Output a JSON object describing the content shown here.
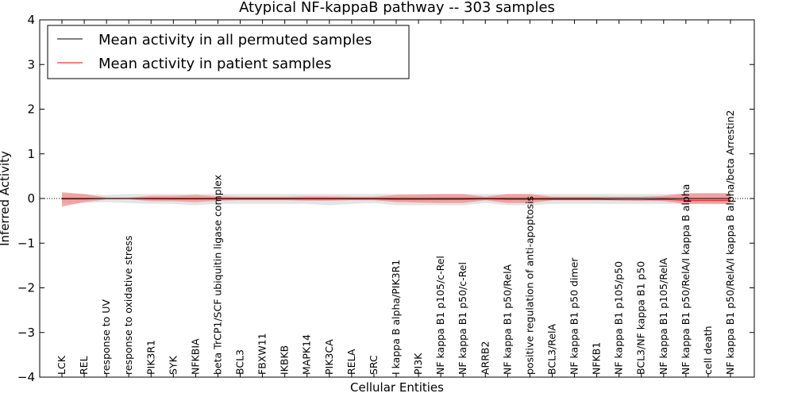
{
  "chart_data": {
    "type": "line",
    "title": "Atypical NF-kappaB pathway -- 303 samples",
    "xlabel": "Cellular Entities",
    "ylabel": "Inferred Activity",
    "ylim": [
      -4,
      4
    ],
    "yticks": [
      4,
      3,
      2,
      1,
      0,
      -1,
      -2,
      -3,
      -4
    ],
    "ytick_labels": [
      "4",
      "3",
      "2",
      "1",
      "0",
      "−1",
      "−2",
      "−3",
      "−4"
    ],
    "grid": false,
    "legend_position": "top-left",
    "categories": [
      "LCK",
      "REL",
      "response to UV",
      "response to oxidative stress",
      "PIK3R1",
      "SYK",
      "NFKBIA",
      "beta TrCP1/SCF ubiquitin ligase complex",
      "BCL3",
      "FBXW11",
      "IKBKB",
      "MAPK14",
      "PIK3CA",
      "RELA",
      "SRC",
      "I kappa B alpha/PIK3R1",
      "PI3K",
      "NF kappa B1 p105/c-Rel",
      "NF kappa B1 p50/c-Rel",
      "ARRB2",
      "NF kappa B1 p50/RelA",
      "positive regulation of anti-apoptosis",
      "BCL3/RelA",
      "NF kappa B1 p50 dimer",
      "NFKB1",
      "NF kappa B1 p105/p50",
      "BCL3/NF kappa B1 p50",
      "NF kappa B1 p105/RelA",
      "NF kappa B1 p50/RelA/I kappa B alpha",
      "cell death",
      "NF kappa B1 p50/RelA/I kappa B alpha/beta Arrestin2"
    ],
    "series": [
      {
        "name": "Mean activity in all permuted samples",
        "color": "#000000",
        "values": [
          0.0,
          0.0,
          0.0,
          0.0,
          0.0,
          0.0,
          0.0,
          0.0,
          0.0,
          0.0,
          0.0,
          0.0,
          0.0,
          0.0,
          0.0,
          0.0,
          0.0,
          0.0,
          0.0,
          0.0,
          0.0,
          0.0,
          0.0,
          0.0,
          0.0,
          0.0,
          0.0,
          0.0,
          0.0,
          0.0,
          0.0
        ],
        "band_upper": [
          0.1,
          0.1,
          0.08,
          0.1,
          0.1,
          0.1,
          0.1,
          0.1,
          0.1,
          0.1,
          0.1,
          0.1,
          0.1,
          0.1,
          0.1,
          0.1,
          0.1,
          0.1,
          0.1,
          0.1,
          0.1,
          0.1,
          0.1,
          0.1,
          0.1,
          0.1,
          0.1,
          0.1,
          0.1,
          0.1,
          0.1
        ],
        "band_lower": [
          -0.1,
          -0.1,
          -0.08,
          -0.1,
          -0.12,
          -0.12,
          -0.15,
          -0.12,
          -0.12,
          -0.12,
          -0.12,
          -0.12,
          -0.15,
          -0.12,
          -0.1,
          -0.15,
          -0.15,
          -0.15,
          -0.15,
          -0.1,
          -0.15,
          -0.15,
          -0.12,
          -0.12,
          -0.12,
          -0.12,
          -0.12,
          -0.12,
          -0.12,
          -0.12,
          -0.12
        ],
        "band_color": "#d8d8d8"
      },
      {
        "name": "Mean activity in patient samples",
        "color": "#ff0000",
        "values": [
          -0.01,
          -0.01,
          0.0,
          0.0,
          -0.01,
          -0.01,
          -0.01,
          -0.01,
          -0.01,
          -0.01,
          -0.01,
          -0.01,
          -0.01,
          -0.01,
          -0.01,
          -0.02,
          -0.02,
          -0.02,
          -0.02,
          -0.01,
          -0.02,
          -0.02,
          -0.02,
          -0.02,
          -0.02,
          -0.03,
          -0.03,
          -0.02,
          -0.04,
          -0.04,
          -0.04
        ],
        "band_upper": [
          0.14,
          0.1,
          0.02,
          0.02,
          0.06,
          0.06,
          0.08,
          0.05,
          0.04,
          0.04,
          0.04,
          0.05,
          0.05,
          0.04,
          0.04,
          0.08,
          0.09,
          0.1,
          0.1,
          0.04,
          0.1,
          0.1,
          0.04,
          0.04,
          0.04,
          0.04,
          0.04,
          0.06,
          0.12,
          0.12,
          0.12
        ],
        "band_lower": [
          -0.18,
          -0.08,
          -0.02,
          -0.02,
          -0.06,
          -0.06,
          -0.08,
          -0.05,
          -0.04,
          -0.04,
          -0.04,
          -0.05,
          -0.05,
          -0.04,
          -0.04,
          -0.08,
          -0.09,
          -0.1,
          -0.1,
          -0.04,
          -0.1,
          -0.1,
          -0.04,
          -0.04,
          -0.04,
          -0.04,
          -0.04,
          -0.06,
          -0.12,
          -0.12,
          -0.12
        ],
        "band_color": "#f08080"
      }
    ],
    "reference_line": {
      "y": 0,
      "style": "dotted"
    }
  }
}
